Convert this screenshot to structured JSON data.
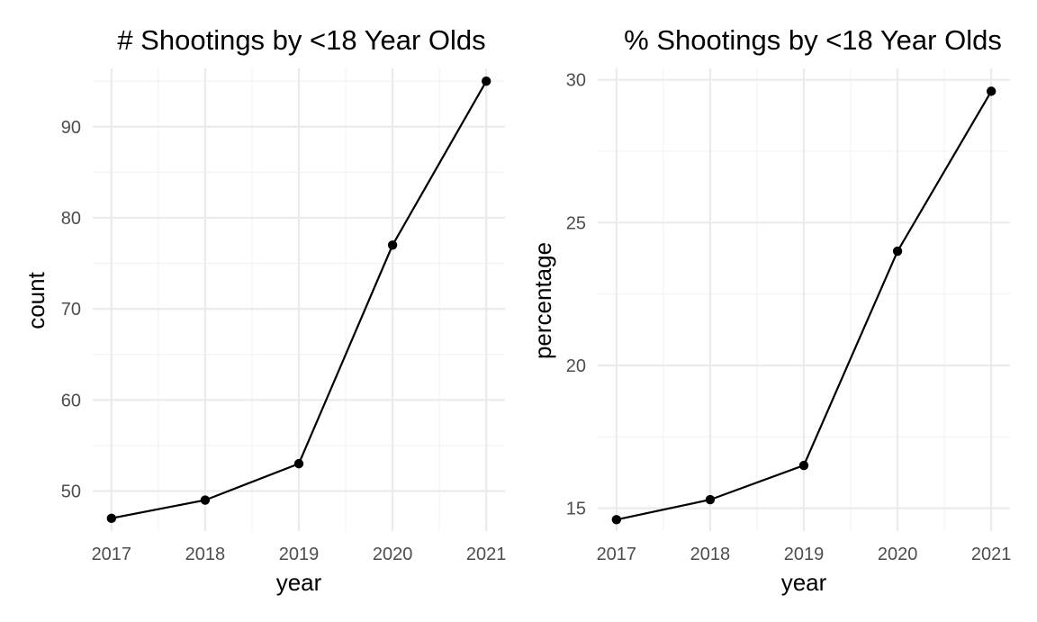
{
  "chart_data": [
    {
      "type": "line",
      "title": "# Shootings by <18 Year Olds",
      "xlabel": "year",
      "ylabel": "count",
      "x": [
        2017,
        2018,
        2019,
        2020,
        2021
      ],
      "y": [
        47,
        49,
        53,
        77,
        95
      ],
      "xticks": [
        "2017",
        "2018",
        "2019",
        "2020",
        "2021"
      ],
      "yticks": [
        50,
        60,
        70,
        80,
        90
      ],
      "xlim": [
        2016.8,
        2021.2
      ],
      "ylim": [
        45.6,
        96.4
      ],
      "grid": true,
      "line_color": "#000000",
      "point_color": "#000000"
    },
    {
      "type": "line",
      "title": "% Shootings by <18 Year Olds",
      "xlabel": "year",
      "ylabel": "percentage",
      "x": [
        2017,
        2018,
        2019,
        2020,
        2021
      ],
      "y": [
        14.6,
        15.3,
        16.5,
        24.0,
        29.6
      ],
      "xticks": [
        "2017",
        "2018",
        "2019",
        "2020",
        "2021"
      ],
      "yticks": [
        15,
        20,
        25,
        30
      ],
      "xlim": [
        2016.8,
        2021.2
      ],
      "ylim": [
        14.2,
        30.4
      ],
      "grid": true,
      "line_color": "#000000",
      "point_color": "#000000"
    }
  ]
}
